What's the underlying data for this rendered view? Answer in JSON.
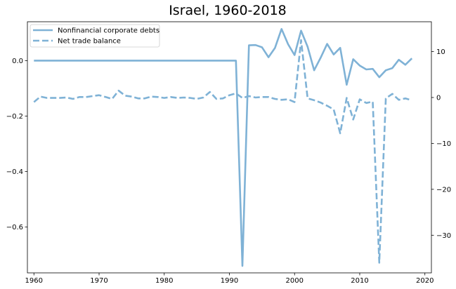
{
  "chart_data": {
    "type": "line",
    "title": "Israel, 1960-2018",
    "x_ticks": [
      1960,
      1970,
      1980,
      1990,
      2000,
      2010,
      2020
    ],
    "xlim": [
      1959,
      2021
    ],
    "y_left": {
      "ylim": [
        -0.765,
        0.14
      ],
      "ticks": [
        0.0,
        -0.2,
        -0.4,
        -0.6
      ],
      "tick_labels": [
        "0.0",
        "−0.2",
        "−0.4",
        "−0.6"
      ]
    },
    "y_right": {
      "ylim": [
        -38.2,
        16.5
      ],
      "ticks": [
        10,
        0,
        -10,
        -20,
        -30
      ],
      "tick_labels": [
        "10",
        "0",
        "−10",
        "−20",
        "−30"
      ]
    },
    "legend_position": "top-left",
    "grid": false,
    "color": "#7fb2d6",
    "series": [
      {
        "name": "Nonfinancial corporate debts",
        "axis": "left",
        "style": "solid",
        "x": [
          1960,
          1961,
          1962,
          1963,
          1964,
          1965,
          1966,
          1967,
          1968,
          1969,
          1970,
          1971,
          1972,
          1973,
          1974,
          1975,
          1976,
          1977,
          1978,
          1979,
          1980,
          1981,
          1982,
          1983,
          1984,
          1985,
          1986,
          1987,
          1988,
          1989,
          1990,
          1991,
          1992,
          1993,
          1994,
          1995,
          1996,
          1997,
          1998,
          1999,
          2000,
          2001,
          2002,
          2003,
          2004,
          2005,
          2006,
          2007,
          2008,
          2009,
          2010,
          2011,
          2012,
          2013,
          2014,
          2015,
          2016,
          2017,
          2018
        ],
        "values": [
          0,
          0,
          0,
          0,
          0,
          0,
          0,
          0,
          0,
          0,
          0,
          0,
          0,
          0,
          0,
          0,
          0,
          0,
          0,
          0,
          0,
          0,
          0,
          0,
          0,
          0,
          0,
          0,
          0,
          0,
          0,
          0,
          -0.74,
          0.055,
          0.056,
          0.048,
          0.012,
          0.046,
          0.114,
          0.059,
          0.02,
          0.108,
          0.05,
          -0.035,
          0.01,
          0.06,
          0.022,
          0.046,
          -0.087,
          0.005,
          -0.018,
          -0.032,
          -0.03,
          -0.06,
          -0.035,
          -0.027,
          0.003,
          -0.015,
          0.008
        ]
      },
      {
        "name": "Net trade balance",
        "axis": "right",
        "style": "dashed",
        "x": [
          1960,
          1961,
          1962,
          1963,
          1964,
          1965,
          1966,
          1967,
          1968,
          1969,
          1970,
          1971,
          1972,
          1973,
          1974,
          1975,
          1976,
          1977,
          1978,
          1979,
          1980,
          1981,
          1982,
          1983,
          1984,
          1985,
          1986,
          1987,
          1988,
          1989,
          1990,
          1991,
          1992,
          1993,
          1994,
          1995,
          1996,
          1997,
          1998,
          1999,
          2000,
          2001,
          2002,
          2003,
          2004,
          2005,
          2006,
          2007,
          2008,
          2009,
          2010,
          2011,
          2012,
          2013,
          2014,
          2015,
          2016,
          2017,
          2018
        ],
        "values": [
          -1.0,
          0.2,
          -0.1,
          -0.1,
          -0.1,
          0.0,
          -0.3,
          0.1,
          0.1,
          0.3,
          0.5,
          0.1,
          -0.3,
          1.5,
          0.4,
          0.2,
          -0.2,
          -0.2,
          0.2,
          0.1,
          -0.1,
          0.1,
          -0.1,
          0.0,
          -0.1,
          -0.3,
          0.0,
          1.2,
          -0.3,
          -0.2,
          0.5,
          0.9,
          -0.1,
          0.3,
          0.0,
          0.1,
          0.1,
          -0.3,
          -0.5,
          -0.4,
          -1.0,
          12.5,
          -0.2,
          -0.6,
          -1.1,
          -1.8,
          -2.6,
          -7.8,
          -0.1,
          -4.8,
          -0.4,
          -1.2,
          -0.9,
          -36.0,
          -0.2,
          0.8,
          -0.5,
          -0.2,
          -0.6
        ]
      }
    ]
  }
}
